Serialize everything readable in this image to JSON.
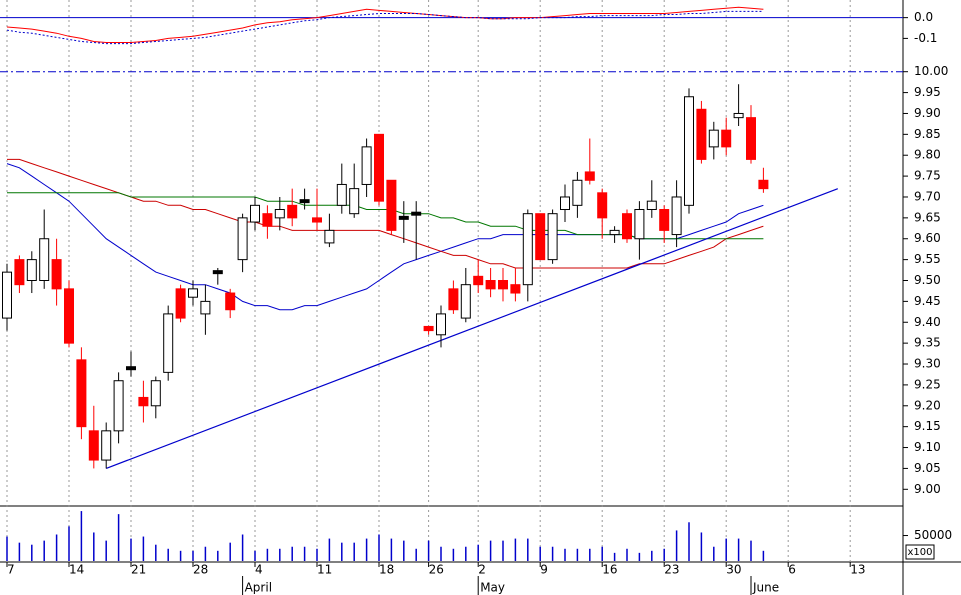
{
  "chart_data": [
    {
      "type": "candlestick",
      "open": [
        9.41,
        9.55,
        9.5,
        9.5,
        9.55,
        9.48,
        9.31,
        9.14,
        9.07,
        9.14,
        9.29,
        9.22,
        9.2,
        9.28,
        9.48,
        9.46,
        9.42,
        9.52,
        9.47,
        9.55,
        9.64,
        9.66,
        9.65,
        9.68,
        9.69,
        9.65,
        9.59,
        9.68,
        9.66,
        9.73,
        9.85,
        9.74,
        9.65,
        9.66,
        9.39,
        9.37,
        9.48,
        9.41,
        9.51,
        9.5,
        9.5,
        9.49,
        9.49,
        9.66,
        9.55,
        9.67,
        9.68,
        9.76,
        9.71,
        9.61,
        9.66,
        9.6,
        9.67,
        9.67,
        9.61,
        9.68,
        9.91,
        9.82,
        9.86,
        9.89,
        9.89,
        9.74
      ],
      "high": [
        9.54,
        9.56,
        9.57,
        9.67,
        9.6,
        9.5,
        9.34,
        9.2,
        9.16,
        9.28,
        9.33,
        9.26,
        9.27,
        9.44,
        9.49,
        9.5,
        9.49,
        9.53,
        9.48,
        9.66,
        9.7,
        9.68,
        9.7,
        9.72,
        9.72,
        9.72,
        9.66,
        9.78,
        9.78,
        9.84,
        9.85,
        9.74,
        9.69,
        9.69,
        9.39,
        9.44,
        9.5,
        9.53,
        9.55,
        9.53,
        9.53,
        9.53,
        9.67,
        9.66,
        9.67,
        9.73,
        9.76,
        9.84,
        9.72,
        9.63,
        9.67,
        9.69,
        9.74,
        9.68,
        9.74,
        9.96,
        9.93,
        9.88,
        9.89,
        9.97,
        9.92,
        9.77
      ],
      "low": [
        9.38,
        9.47,
        9.47,
        9.48,
        9.44,
        9.34,
        9.12,
        9.05,
        9.05,
        9.11,
        9.27,
        9.16,
        9.17,
        9.26,
        9.4,
        9.44,
        9.37,
        9.49,
        9.41,
        9.52,
        9.62,
        9.6,
        9.62,
        9.63,
        9.67,
        9.62,
        9.58,
        9.66,
        9.65,
        9.7,
        9.68,
        9.61,
        9.59,
        9.55,
        9.37,
        9.34,
        9.42,
        9.4,
        9.47,
        9.46,
        9.45,
        9.45,
        9.45,
        9.55,
        9.54,
        9.64,
        9.65,
        9.73,
        9.6,
        9.59,
        9.59,
        9.55,
        9.65,
        9.59,
        9.58,
        9.66,
        9.78,
        9.79,
        9.8,
        9.87,
        9.78,
        9.71
      ],
      "close": [
        9.52,
        9.49,
        9.55,
        9.6,
        9.48,
        9.35,
        9.15,
        9.07,
        9.14,
        9.26,
        9.29,
        9.2,
        9.26,
        9.42,
        9.41,
        9.48,
        9.45,
        9.52,
        9.43,
        9.65,
        9.68,
        9.63,
        9.67,
        9.65,
        9.69,
        9.64,
        9.62,
        9.73,
        9.72,
        9.82,
        9.69,
        9.62,
        9.65,
        9.66,
        9.38,
        9.42,
        9.43,
        9.49,
        9.49,
        9.48,
        9.48,
        9.47,
        9.66,
        9.55,
        9.66,
        9.7,
        9.74,
        9.74,
        9.65,
        9.62,
        9.6,
        9.67,
        9.69,
        9.62,
        9.7,
        9.94,
        9.79,
        9.86,
        9.82,
        9.9,
        9.79,
        9.72
      ],
      "up_color": "#ffffff",
      "down_color": "#ff0000",
      "flat_color": "#000000",
      "moving_averages": [
        {
          "color": "#0000cc",
          "values": [
            9.78,
            9.77,
            9.75,
            9.73,
            9.71,
            9.69,
            9.66,
            9.63,
            9.6,
            9.58,
            9.56,
            9.54,
            9.52,
            9.51,
            9.5,
            9.49,
            9.49,
            9.48,
            9.47,
            9.45,
            9.44,
            9.44,
            9.43,
            9.43,
            9.44,
            9.44,
            9.45,
            9.46,
            9.47,
            9.48,
            9.5,
            9.52,
            9.54,
            9.55,
            9.56,
            9.57,
            9.58,
            9.59,
            9.6,
            9.6,
            9.61,
            9.61,
            9.61,
            9.61,
            9.61,
            9.61,
            9.61,
            9.61,
            9.61,
            9.61,
            9.61,
            9.6,
            9.6,
            9.6,
            9.6,
            9.61,
            9.62,
            9.63,
            9.64,
            9.66,
            9.67,
            9.68
          ]
        },
        {
          "color": "#cc0000",
          "values": [
            9.79,
            9.79,
            9.78,
            9.77,
            9.76,
            9.75,
            9.74,
            9.73,
            9.72,
            9.71,
            9.7,
            9.69,
            9.69,
            9.68,
            9.68,
            9.67,
            9.67,
            9.66,
            9.65,
            9.64,
            9.64,
            9.63,
            9.63,
            9.62,
            9.62,
            9.62,
            9.62,
            9.62,
            9.62,
            9.62,
            9.62,
            9.61,
            9.6,
            9.59,
            9.58,
            9.57,
            9.56,
            9.56,
            9.55,
            9.54,
            9.54,
            9.53,
            9.53,
            9.53,
            9.53,
            9.53,
            9.53,
            9.53,
            9.53,
            9.53,
            9.53,
            9.54,
            9.54,
            9.54,
            9.55,
            9.56,
            9.57,
            9.58,
            9.6,
            9.61,
            9.62,
            9.63
          ]
        },
        {
          "color": "#007700",
          "values": [
            9.71,
            9.71,
            9.71,
            9.71,
            9.71,
            9.71,
            9.71,
            9.71,
            9.71,
            9.71,
            9.7,
            9.7,
            9.7,
            9.7,
            9.7,
            9.7,
            9.7,
            9.7,
            9.7,
            9.7,
            9.7,
            9.69,
            9.69,
            9.69,
            9.68,
            9.68,
            9.68,
            9.68,
            9.68,
            9.67,
            9.67,
            9.67,
            9.66,
            9.66,
            9.66,
            9.65,
            9.65,
            9.64,
            9.64,
            9.63,
            9.63,
            9.63,
            9.62,
            9.62,
            9.62,
            9.62,
            9.61,
            9.61,
            9.61,
            9.61,
            9.61,
            9.6,
            9.6,
            9.6,
            9.6,
            9.6,
            9.6,
            9.6,
            9.6,
            9.6,
            9.6,
            9.6
          ]
        }
      ],
      "trendline": {
        "color": "#0000cc",
        "x": [
          8,
          67
        ],
        "values": [
          9.05,
          9.72
        ]
      },
      "hline": {
        "value": 10,
        "color": "#0000cc"
      },
      "ylim": [
        8.96,
        10.04
      ],
      "yticks": [
        {
          "value": 9,
          "label": "9.00"
        },
        9.05,
        {
          "value": 9.1,
          "label": "9.10"
        },
        9.15,
        {
          "value": 9.2,
          "label": "9.20"
        },
        9.25,
        {
          "value": 9.3,
          "label": "9.30"
        },
        9.35,
        {
          "value": 9.4,
          "label": "9.40"
        },
        9.45,
        {
          "value": 9.5,
          "label": "9.50"
        },
        9.55,
        {
          "value": 9.6,
          "label": "9.60"
        },
        9.65,
        {
          "value": 9.7,
          "label": "9.70"
        },
        9.75,
        {
          "value": 9.8,
          "label": "9.80"
        },
        9.85,
        {
          "value": 9.9,
          "label": "9.90"
        },
        9.95,
        {
          "value": 10,
          "label": "10.00"
        }
      ]
    },
    {
      "type": "line",
      "series": [
        {
          "color": "#ff0000",
          "style": "solid",
          "values": [
            -0.045,
            -0.05,
            -0.055,
            -0.065,
            -0.075,
            -0.09,
            -0.1,
            -0.115,
            -0.12,
            -0.12,
            -0.12,
            -0.115,
            -0.11,
            -0.1,
            -0.095,
            -0.09,
            -0.08,
            -0.07,
            -0.06,
            -0.05,
            -0.035,
            -0.025,
            -0.02,
            -0.01,
            -0.005,
            0.0,
            0.01,
            0.02,
            0.03,
            0.04,
            0.035,
            0.03,
            0.025,
            0.02,
            0.015,
            0.01,
            0.005,
            0.0,
            0.0,
            -0.005,
            -0.005,
            0.0,
            0.0,
            0.0,
            0.005,
            0.01,
            0.015,
            0.02,
            0.02,
            0.02,
            0.02,
            0.02,
            0.02,
            0.02,
            0.025,
            0.03,
            0.035,
            0.04,
            0.045,
            0.05,
            0.045,
            0.04
          ]
        },
        {
          "color": "#0000cc",
          "style": "dotted",
          "values": [
            -0.06,
            -0.07,
            -0.075,
            -0.085,
            -0.095,
            -0.105,
            -0.115,
            -0.12,
            -0.125,
            -0.125,
            -0.125,
            -0.12,
            -0.115,
            -0.11,
            -0.105,
            -0.1,
            -0.095,
            -0.085,
            -0.075,
            -0.065,
            -0.055,
            -0.045,
            -0.035,
            -0.025,
            -0.015,
            -0.01,
            0.0,
            0.005,
            0.01,
            0.015,
            0.02,
            0.02,
            0.02,
            0.02,
            0.015,
            0.01,
            0.005,
            0.0,
            0.0,
            -0.005,
            -0.005,
            -0.005,
            -0.005,
            0.0,
            0.0,
            0.0,
            0.005,
            0.005,
            0.01,
            0.01,
            0.01,
            0.01,
            0.01,
            0.015,
            0.015,
            0.02,
            0.02,
            0.025,
            0.03,
            0.03,
            0.03,
            0.03
          ]
        }
      ],
      "hline": {
        "value": 0,
        "color": "#0000cc"
      },
      "ylim": [
        -0.18,
        0.085
      ],
      "yticks": [
        {
          "value": 0,
          "label": "0.0"
        },
        -0.1
      ]
    },
    {
      "type": "bar",
      "categories": [
        "7",
        null,
        null,
        null,
        null,
        "14",
        null,
        null,
        null,
        null,
        "21",
        null,
        null,
        null,
        null,
        "28",
        null,
        null,
        null,
        null,
        "4",
        null,
        null,
        null,
        null,
        "11",
        null,
        null,
        null,
        null,
        "18",
        null,
        null,
        null,
        "26",
        null,
        null,
        null,
        "2",
        null,
        null,
        null,
        null,
        "9",
        null,
        null,
        null,
        null,
        "16",
        null,
        null,
        null,
        null,
        "23",
        null,
        null,
        null,
        null,
        "30",
        null,
        null,
        null,
        null,
        "6",
        null,
        null,
        null,
        null,
        "13"
      ],
      "month_labels": [
        null,
        null,
        null,
        null,
        null,
        null,
        null,
        null,
        null,
        null,
        null,
        null,
        null,
        null,
        null,
        null,
        null,
        null,
        null,
        "April",
        null,
        null,
        null,
        null,
        null,
        null,
        null,
        null,
        null,
        null,
        null,
        null,
        null,
        null,
        null,
        null,
        null,
        null,
        "May",
        null,
        null,
        null,
        null,
        null,
        null,
        null,
        null,
        null,
        null,
        null,
        null,
        null,
        null,
        null,
        null,
        null,
        null,
        null,
        null,
        null,
        "June",
        null,
        null,
        null,
        null,
        null,
        null,
        null,
        null
      ],
      "values": [
        48000,
        36000,
        32000,
        40000,
        52000,
        68000,
        98000,
        56000,
        40000,
        92000,
        44000,
        48000,
        32000,
        24000,
        20000,
        20000,
        28000,
        20000,
        36000,
        52000,
        20000,
        24000,
        24000,
        28000,
        28000,
        24000,
        44000,
        36000,
        36000,
        44000,
        52000,
        44000,
        40000,
        24000,
        40000,
        28000,
        24000,
        28000,
        32000,
        40000,
        40000,
        44000,
        44000,
        28000,
        28000,
        24000,
        24000,
        24000,
        28000,
        16000,
        24000,
        16000,
        20000,
        24000,
        60000,
        76000,
        56000,
        28000,
        44000,
        44000,
        40000,
        20000,
        null,
        null,
        null,
        null,
        null,
        null,
        null
      ],
      "color": "#0000cc",
      "unit_label": "x100",
      "ylim": [
        0,
        106000
      ],
      "yticks": [
        50000
      ]
    }
  ]
}
